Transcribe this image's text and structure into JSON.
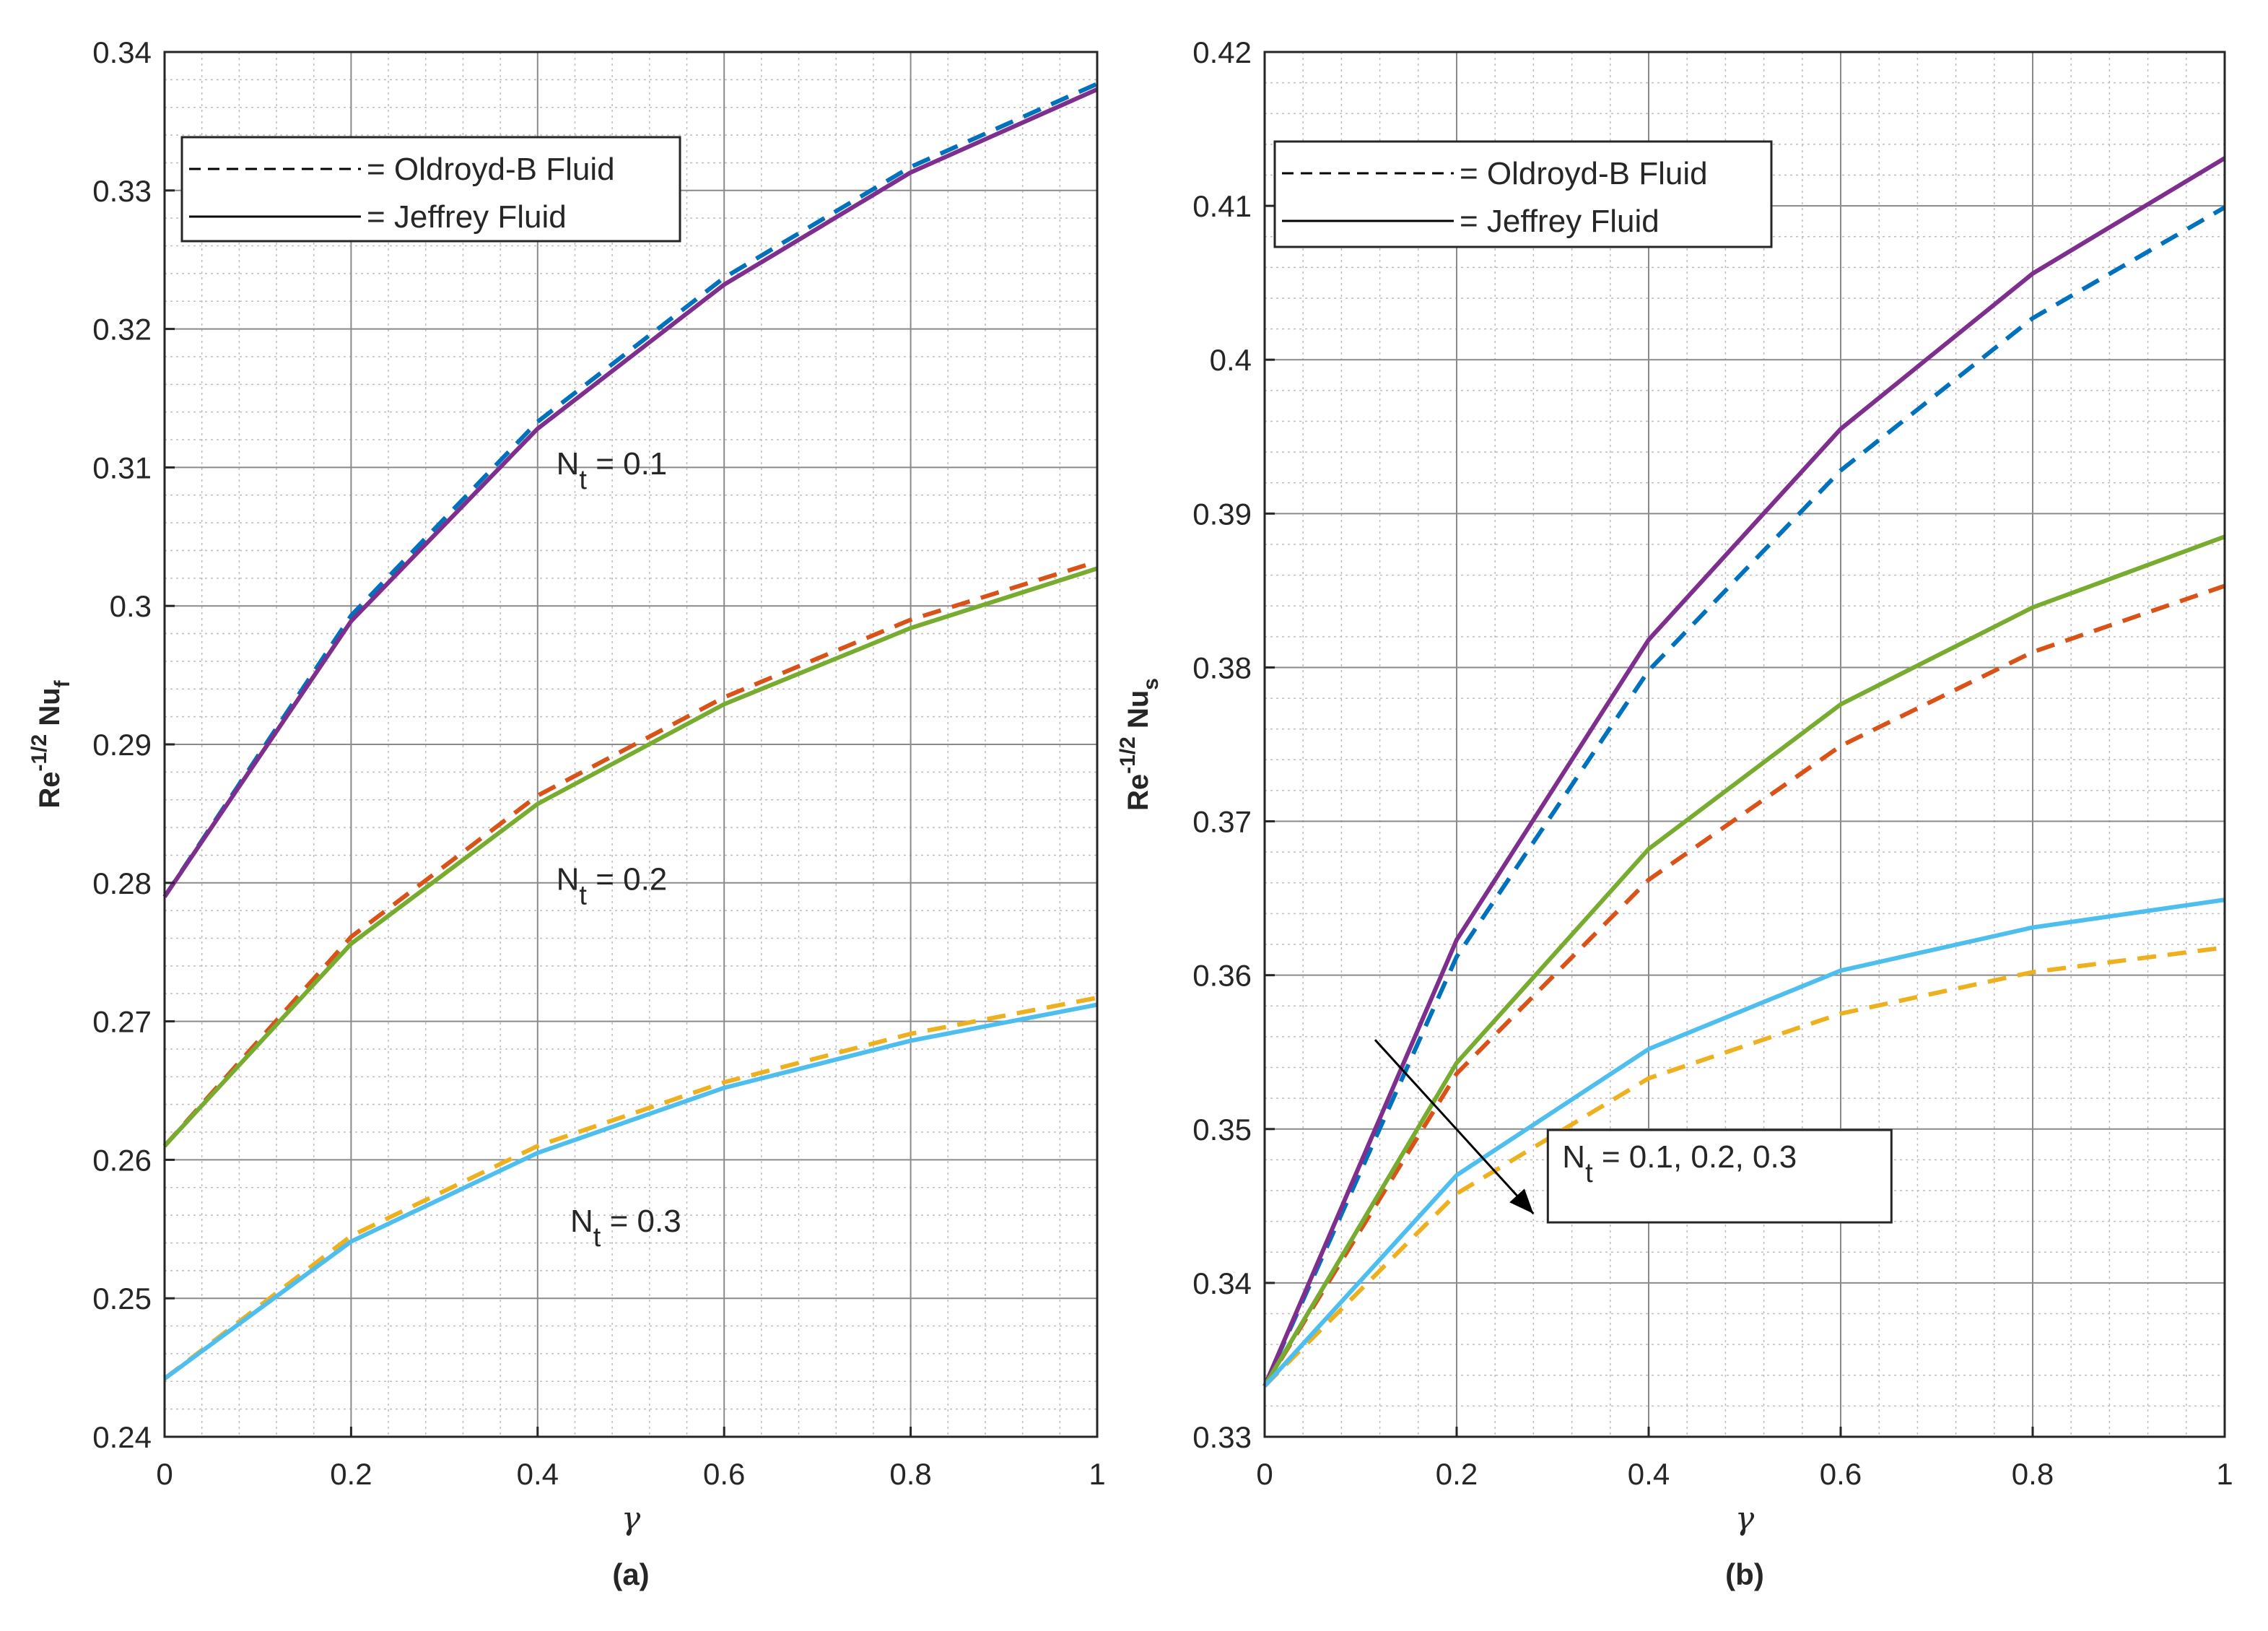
{
  "colors": {
    "blue": "#0072BD",
    "orange": "#D95319",
    "yellow": "#EDB120",
    "purple": "#7E2F8E",
    "green": "#77AC30",
    "cyan": "#4DBEEE",
    "grid": "#bdbdbd",
    "axis": "#262626"
  },
  "chart_data": [
    {
      "type": "line",
      "panel_label": "(a)",
      "xlabel": "γ",
      "ylabel": {
        "main": "Re",
        "sup": "-1/2",
        "mid": " Nu",
        "sub": "f"
      },
      "xlim": [
        0,
        1
      ],
      "ylim": [
        0.24,
        0.34
      ],
      "x_ticks": [
        0,
        0.2,
        0.4,
        0.6,
        0.8,
        1
      ],
      "x_tick_labels": [
        "0",
        "0.2",
        "0.4",
        "0.6",
        "0.8",
        "1"
      ],
      "y_ticks": [
        0.24,
        0.25,
        0.26,
        0.27,
        0.28,
        0.29,
        0.3,
        0.31,
        0.32,
        0.33,
        0.34
      ],
      "y_tick_labels": [
        "0.24",
        "0.25",
        "0.26",
        "0.27",
        "0.28",
        "0.29",
        "0.3",
        "0.31",
        "0.32",
        "0.33",
        "0.34"
      ],
      "grid": true,
      "minor_grid": true,
      "legend": {
        "placement": "top-left",
        "entries": [
          {
            "label": "= Oldroyd-B Fluid",
            "style": "dashed"
          },
          {
            "label": "= Jeffrey Fluid",
            "style": "solid"
          }
        ]
      },
      "x": [
        0,
        0.2,
        0.4,
        0.6,
        0.8,
        1
      ],
      "series": [
        {
          "name": "Oldroyd-B, Nt = 0.1",
          "style": "dashed",
          "color": "blue",
          "values": [
            0.279,
            0.2993,
            0.3133,
            0.3237,
            0.3317,
            0.3377
          ]
        },
        {
          "name": "Jeffrey, Nt = 0.1",
          "style": "solid",
          "color": "purple",
          "values": [
            0.279,
            0.2989,
            0.3128,
            0.3232,
            0.3313,
            0.3373
          ]
        },
        {
          "name": "Oldroyd-B, Nt = 0.2",
          "style": "dashed",
          "color": "orange",
          "values": [
            0.261,
            0.2761,
            0.2863,
            0.2934,
            0.299,
            0.3032
          ]
        },
        {
          "name": "Jeffrey, Nt = 0.2",
          "style": "solid",
          "color": "green",
          "values": [
            0.261,
            0.2756,
            0.2857,
            0.2929,
            0.2984,
            0.3027
          ]
        },
        {
          "name": "Oldroyd-B, Nt = 0.3",
          "style": "dashed",
          "color": "yellow",
          "values": [
            0.2442,
            0.2545,
            0.261,
            0.2656,
            0.2691,
            0.2717
          ]
        },
        {
          "name": "Jeffrey, Nt = 0.3",
          "style": "solid",
          "color": "cyan",
          "values": [
            0.2442,
            0.2541,
            0.2605,
            0.2652,
            0.2686,
            0.2712
          ]
        }
      ],
      "annotations": [
        {
          "text_main": "N",
          "text_sub": "t",
          "text_rest": " = 0.1",
          "at": [
            0.42,
            0.3095
          ]
        },
        {
          "text_main": "N",
          "text_sub": "t",
          "text_rest": " = 0.2",
          "at": [
            0.42,
            0.2795
          ]
        },
        {
          "text_main": "N",
          "text_sub": "t",
          "text_rest": " = 0.3",
          "at": [
            0.435,
            0.2548
          ]
        }
      ]
    },
    {
      "type": "line",
      "panel_label": "(b)",
      "xlabel": "γ",
      "ylabel": {
        "main": "Re",
        "sup": "-1/2",
        "mid": " Nu",
        "sub": "s"
      },
      "xlim": [
        0,
        1
      ],
      "ylim": [
        0.33,
        0.42
      ],
      "x_ticks": [
        0,
        0.2,
        0.4,
        0.6,
        0.8,
        1
      ],
      "x_tick_labels": [
        "0",
        "0.2",
        "0.4",
        "0.6",
        "0.8",
        "1"
      ],
      "y_ticks": [
        0.33,
        0.34,
        0.35,
        0.36,
        0.37,
        0.38,
        0.39,
        0.4,
        0.41,
        0.42
      ],
      "y_tick_labels": [
        "0.33",
        "0.34",
        "0.35",
        "0.36",
        "0.37",
        "0.38",
        "0.39",
        "0.4",
        "0.41",
        "0.42"
      ],
      "grid": true,
      "minor_grid": true,
      "legend": {
        "placement": "top-left",
        "entries": [
          {
            "label": "= Oldroyd-B Fluid",
            "style": "dashed"
          },
          {
            "label": "= Jeffrey Fluid",
            "style": "solid"
          }
        ]
      },
      "x": [
        0,
        0.2,
        0.4,
        0.6,
        0.8,
        1
      ],
      "series": [
        {
          "name": "Oldroyd-B, Nt = 0.1",
          "style": "dashed",
          "color": "blue",
          "values": [
            0.3333,
            0.3612,
            0.3798,
            0.3928,
            0.4027,
            0.4099
          ]
        },
        {
          "name": "Jeffrey, Nt = 0.1",
          "style": "solid",
          "color": "purple",
          "values": [
            0.3333,
            0.3623,
            0.3818,
            0.3955,
            0.4056,
            0.4131
          ]
        },
        {
          "name": "Oldroyd-B, Nt = 0.2",
          "style": "dashed",
          "color": "orange",
          "values": [
            0.3333,
            0.3536,
            0.3662,
            0.3749,
            0.381,
            0.3853
          ]
        },
        {
          "name": "Jeffrey, Nt = 0.2",
          "style": "solid",
          "color": "green",
          "values": [
            0.3333,
            0.3543,
            0.3682,
            0.3776,
            0.3839,
            0.3885
          ]
        },
        {
          "name": "Oldroyd-B, Nt = 0.3",
          "style": "dashed",
          "color": "yellow",
          "values": [
            0.3333,
            0.3458,
            0.3533,
            0.3575,
            0.3602,
            0.3618
          ]
        },
        {
          "name": "Jeffrey, Nt = 0.3",
          "style": "solid",
          "color": "cyan",
          "values": [
            0.3333,
            0.347,
            0.3552,
            0.3603,
            0.3631,
            0.3649
          ]
        }
      ],
      "annotations": [
        {
          "text_main": "N",
          "text_sub": "t",
          "text_rest": " = 0.1, 0.2, 0.3",
          "at": [
            0.31,
            0.3475
          ],
          "boxed": true
        }
      ],
      "arrow": {
        "from": [
          0.115,
          0.3558
        ],
        "to": [
          0.28,
          0.3445
        ]
      }
    }
  ]
}
